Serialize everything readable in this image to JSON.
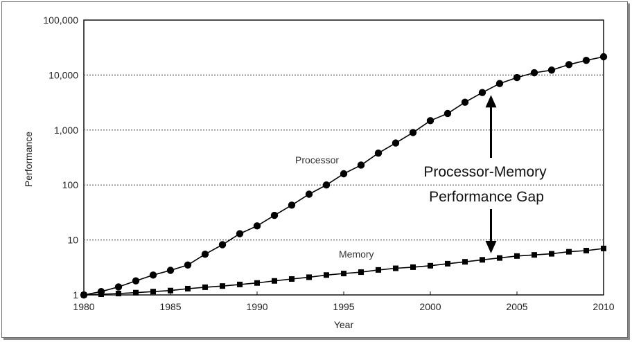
{
  "chart_data": {
    "type": "line",
    "title": "",
    "xlabel": "Year",
    "ylabel": "Performance",
    "yscale": "log",
    "xlim": [
      1980,
      2010
    ],
    "ylim": [
      1,
      100000
    ],
    "grid": "horizontal dotted at each decade",
    "x_ticks": [
      "1980",
      "1985",
      "1990",
      "1995",
      "2000",
      "2005",
      "2010"
    ],
    "y_ticks": [
      "1",
      "10",
      "100",
      "1,000",
      "10,000",
      "100,000"
    ],
    "annotation": [
      "Processor-Memory",
      "Performance Gap"
    ],
    "annotation_arrow_year": 2003.5,
    "series": [
      {
        "name": "Processor",
        "marker": "circle",
        "x": [
          1980,
          1981,
          1982,
          1983,
          1984,
          1985,
          1986,
          1987,
          1988,
          1989,
          1990,
          1991,
          1992,
          1993,
          1994,
          1995,
          1996,
          1997,
          1998,
          1999,
          2000,
          2001,
          2002,
          2003,
          2004,
          2005,
          2006,
          2007,
          2008,
          2009,
          2010
        ],
        "y": [
          1,
          1.15,
          1.4,
          1.8,
          2.3,
          2.8,
          3.5,
          5.5,
          8.2,
          13,
          18,
          28,
          43,
          68,
          100,
          160,
          230,
          380,
          580,
          900,
          1480,
          2000,
          3200,
          4800,
          7000,
          9000,
          11000,
          12300,
          15500,
          18500,
          21500
        ]
      },
      {
        "name": "Memory",
        "marker": "square",
        "x": [
          1980,
          1981,
          1982,
          1983,
          1984,
          1985,
          1986,
          1987,
          1988,
          1989,
          1990,
          1991,
          1992,
          1993,
          1994,
          1995,
          1996,
          1997,
          1998,
          1999,
          2000,
          2001,
          2002,
          2003,
          2004,
          2005,
          2006,
          2007,
          2008,
          2009,
          2010
        ],
        "y": [
          1,
          1.03,
          1.06,
          1.1,
          1.15,
          1.2,
          1.3,
          1.38,
          1.45,
          1.55,
          1.65,
          1.8,
          1.95,
          2.1,
          2.3,
          2.45,
          2.6,
          2.85,
          3.05,
          3.2,
          3.4,
          3.7,
          4.0,
          4.35,
          4.7,
          5.1,
          5.35,
          5.6,
          6.1,
          6.4,
          7.0
        ]
      }
    ]
  }
}
